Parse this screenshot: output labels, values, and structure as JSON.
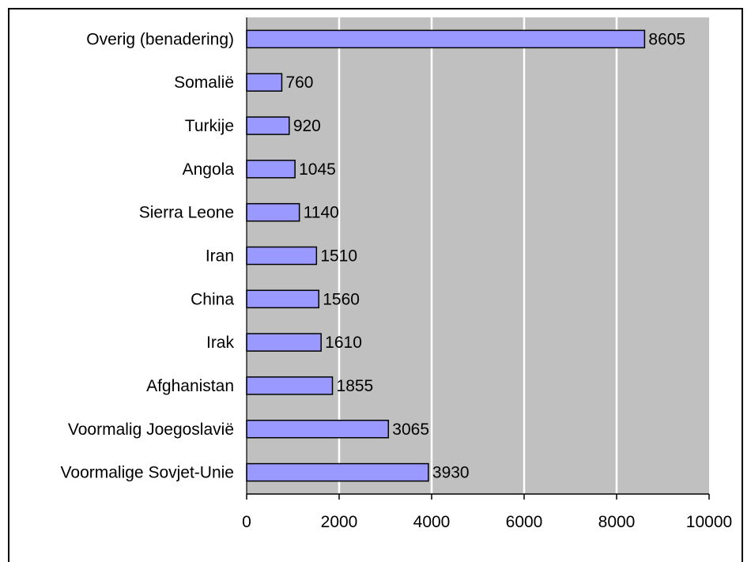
{
  "chart_data": {
    "type": "bar",
    "orientation": "horizontal",
    "categories": [
      "Overig (benadering)",
      "Somalië",
      "Turkije",
      "Angola",
      "Sierra Leone",
      "Iran",
      "China",
      "Irak",
      "Afghanistan",
      "Voormalig Joegoslavië",
      "Voormalige Sovjet-Unie"
    ],
    "values": [
      8605,
      760,
      920,
      1045,
      1140,
      1510,
      1560,
      1610,
      1855,
      3065,
      3930
    ],
    "value_labels": [
      "8605",
      "760",
      "920",
      "1045",
      "1140",
      "1510",
      "1560",
      "1610",
      "1855",
      "3065",
      "3930"
    ],
    "xlim": [
      0,
      10000
    ],
    "x_ticks": [
      0,
      2000,
      4000,
      6000,
      8000,
      10000
    ],
    "x_tick_labels": [
      "0",
      "2000",
      "4000",
      "6000",
      "8000",
      "10000"
    ],
    "grid": "vertical",
    "legend": "none",
    "colors": {
      "bar_fill": "#9999ff",
      "bar_stroke": "#000000",
      "plot_background": "#c0c0c0",
      "gridline": "#ffffff"
    }
  }
}
